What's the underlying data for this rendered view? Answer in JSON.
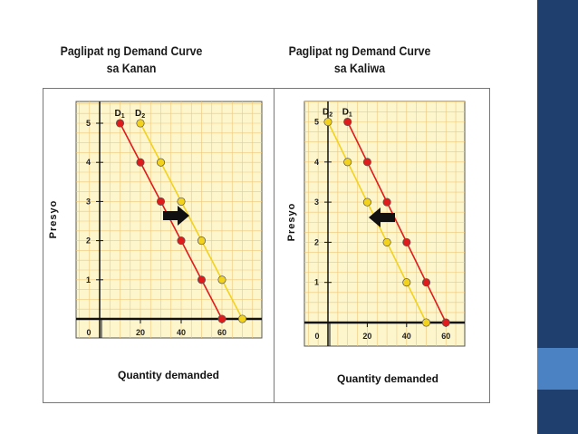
{
  "colors": {
    "accent": "#1f3f6e",
    "accent_light": "#4a82c4",
    "d1": "#e01b1b",
    "d2": "#f3d21d",
    "plot_bg": "#fdf6cc",
    "grid": "#efc779"
  },
  "slide": {
    "left_title": "Paglipat ng Demand Curve\nsa Kanan",
    "right_title": "Paglipat ng Demand Curve\nsa Kaliwa"
  },
  "chart_data": [
    {
      "type": "line",
      "ylabel": "Presyo",
      "xlabel": "Quantity demanded",
      "x_ticks": [
        "0",
        "20",
        "40",
        "60"
      ],
      "y_ticks": [
        "1",
        "2",
        "3",
        "4",
        "5"
      ],
      "xlim": [
        0,
        80
      ],
      "ylim": [
        0,
        5.5
      ],
      "grid": true,
      "shift_arrow": "right",
      "series": [
        {
          "name": "D1",
          "color": "#e01b1b",
          "points": [
            [
              10,
              5
            ],
            [
              20,
              4
            ],
            [
              30,
              3
            ],
            [
              40,
              2
            ],
            [
              50,
              1
            ],
            [
              60,
              0
            ]
          ]
        },
        {
          "name": "D2",
          "color": "#f3d21d",
          "points": [
            [
              20,
              5
            ],
            [
              30,
              4
            ],
            [
              40,
              3
            ],
            [
              50,
              2
            ],
            [
              60,
              1
            ],
            [
              70,
              0
            ]
          ]
        }
      ]
    },
    {
      "type": "line",
      "ylabel": "Presyo",
      "xlabel": "Quantity demanded",
      "x_ticks": [
        "0",
        "20",
        "40",
        "60"
      ],
      "y_ticks": [
        "1",
        "2",
        "3",
        "4",
        "5"
      ],
      "xlim": [
        0,
        65
      ],
      "ylim": [
        0,
        5.5
      ],
      "grid": true,
      "shift_arrow": "left",
      "series": [
        {
          "name": "D2",
          "color": "#f3d21d",
          "points": [
            [
              0,
              5
            ],
            [
              10,
              4
            ],
            [
              20,
              3
            ],
            [
              30,
              2
            ],
            [
              40,
              1
            ],
            [
              50,
              0
            ]
          ]
        },
        {
          "name": "D1",
          "color": "#e01b1b",
          "points": [
            [
              10,
              5
            ],
            [
              20,
              4
            ],
            [
              30,
              3
            ],
            [
              40,
              2
            ],
            [
              50,
              1
            ],
            [
              60,
              0
            ]
          ]
        }
      ]
    }
  ]
}
